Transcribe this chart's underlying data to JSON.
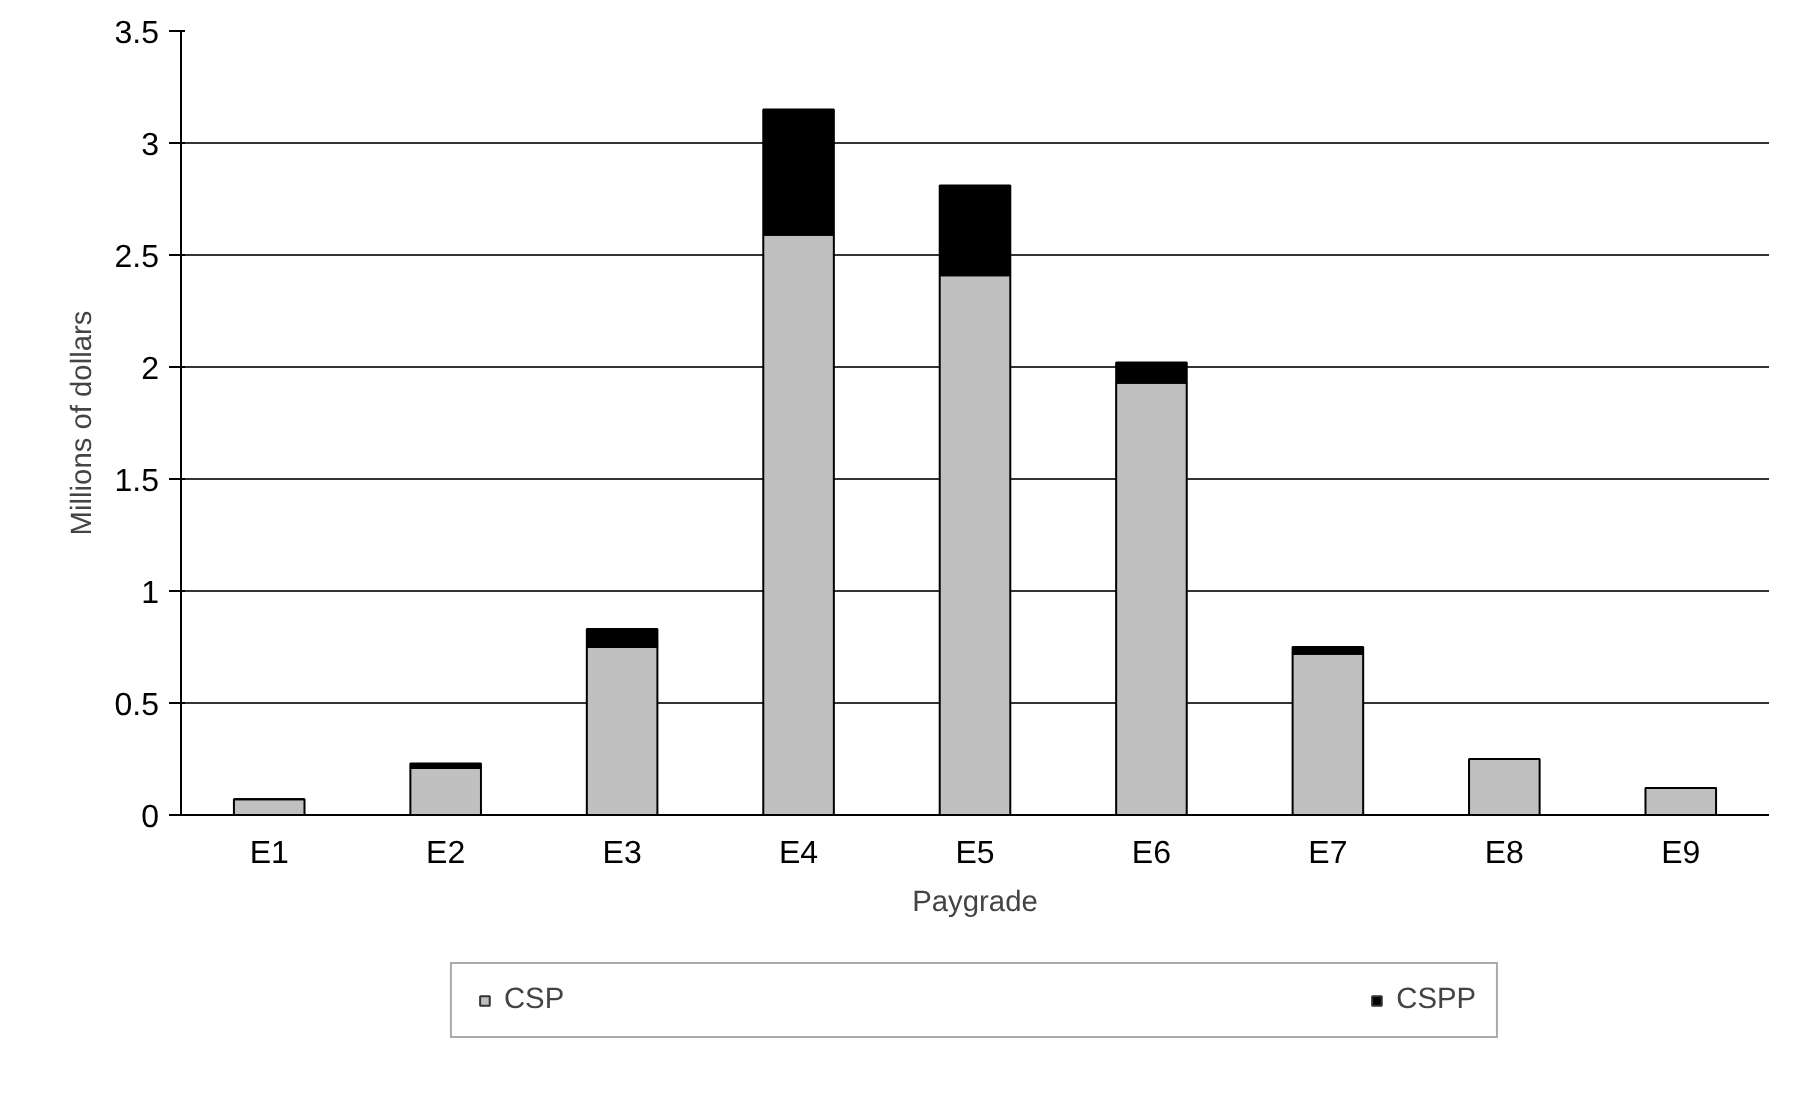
{
  "chart_data": {
    "type": "bar",
    "stacked": true,
    "xlabel": "Paygrade",
    "ylabel": "Millions of dollars",
    "categories": [
      "E1",
      "E2",
      "E3",
      "E4",
      "E5",
      "E6",
      "E7",
      "E8",
      "E9"
    ],
    "series": [
      {
        "name": "CSP",
        "color": "#c0c0c0",
        "values": [
          0.07,
          0.21,
          0.75,
          2.59,
          2.41,
          1.93,
          0.72,
          0.25,
          0.12
        ]
      },
      {
        "name": "CSPP",
        "color": "#000000",
        "values": [
          0,
          0.02,
          0.08,
          0.56,
          0.4,
          0.09,
          0.03,
          0,
          0
        ]
      }
    ],
    "ylim": [
      0,
      3.5
    ],
    "yticks": [
      0,
      0.5,
      1,
      1.5,
      2,
      2.5,
      3,
      3.5
    ],
    "grid": "y",
    "legend": "bottom"
  }
}
